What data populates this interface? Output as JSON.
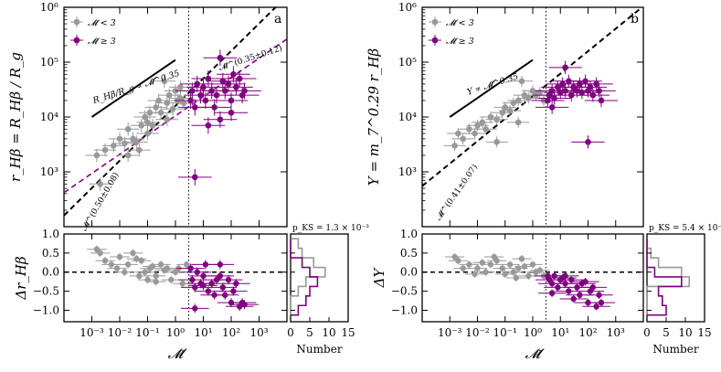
{
  "colors": {
    "low": "#999999",
    "high": "#800080",
    "dash_high": "#800080"
  },
  "chart_data": [
    {
      "type": "scatter",
      "panel": "a",
      "ylabel": "r_Hβ = R_Hβ / R_g",
      "xlabel": "𝓜̇",
      "xscale": "log",
      "yscale": "log",
      "xlim": [
        0.0001,
        10000
      ],
      "ylim": [
        100,
        1000000
      ],
      "xtick_labels": [
        "10⁻³",
        "10⁻²",
        "10⁻¹",
        "10⁰",
        "10¹",
        "10²",
        "10³"
      ],
      "ytick_labels": [
        "10³",
        "10⁴",
        "10⁵",
        "10⁶"
      ],
      "vline_x": 3,
      "legend": {
        "position": "top-left",
        "entries": [
          {
            "label": "𝓜̇ < 3",
            "color": "#999999"
          },
          {
            "label": "𝓜̇ ≥ 3",
            "color": "#800080"
          }
        ]
      },
      "annotations": {
        "panel_letter": "a",
        "scaling_label": "R_Hβ/R_g ∝ 𝓜̇^0.35",
        "fit_low_label": "𝓜̇^(0.50±0.08)",
        "fit_high_label": "𝓜̇^(0.35±0.12)"
      },
      "fits": {
        "low": {
          "slope": 0.5,
          "y_at_1": 16000
        },
        "high": {
          "slope": 0.35,
          "y_at_1": 10500
        },
        "reference": {
          "slope": 0.35,
          "from": [
            0.001,
            10000
          ],
          "to": [
            1,
            110000
          ]
        }
      },
      "series": [
        {
          "name": "𝓜̇ < 3",
          "x": [
            0.0015,
            0.003,
            0.006,
            0.01,
            0.015,
            0.02,
            0.03,
            0.04,
            0.05,
            0.06,
            0.08,
            0.1,
            0.12,
            0.15,
            0.2,
            0.25,
            0.3,
            0.4,
            0.5,
            0.6,
            0.8,
            1.0,
            1.2,
            1.5,
            2.0,
            0.002,
            0.02,
            0.1,
            0.5,
            1.5
          ],
          "y": [
            2000,
            2500,
            3000,
            4000,
            3300,
            6000,
            4000,
            3500,
            2500,
            7000,
            10000,
            8000,
            12000,
            7000,
            15000,
            20000,
            12000,
            45000,
            18000,
            25000,
            14000,
            30000,
            20000,
            35000,
            18000,
            600,
            2000,
            5000,
            9000,
            22000
          ],
          "xerr": 0.4,
          "yerr": 0.12
        },
        {
          "name": "𝓜̇ ≥ 3",
          "x": [
            3.5,
            4,
            5,
            6,
            8,
            10,
            12,
            15,
            20,
            25,
            30,
            40,
            50,
            60,
            80,
            100,
            120,
            150,
            200,
            250,
            300,
            5,
            15,
            40,
            100
          ],
          "y": [
            20000,
            30000,
            15000,
            40000,
            25000,
            35000,
            20000,
            50000,
            30000,
            15000,
            25000,
            120000,
            45000,
            30000,
            40000,
            20000,
            60000,
            35000,
            50000,
            25000,
            30000,
            800,
            7000,
            9000,
            12000
          ],
          "xerr": 0.6,
          "yerr": 0.15
        }
      ]
    },
    {
      "type": "scatter",
      "panel": "b",
      "ylabel": "Y = m_7^0.29 r_Hβ",
      "xlabel": "𝓜̇",
      "xscale": "log",
      "yscale": "log",
      "xlim": [
        0.0001,
        10000
      ],
      "ylim": [
        100,
        1000000
      ],
      "xtick_labels": [
        "10⁻³",
        "10⁻²",
        "10⁻¹",
        "10⁰",
        "10¹",
        "10²",
        "10³"
      ],
      "ytick_labels": [
        "10³",
        "10⁴",
        "10⁵",
        "10⁶"
      ],
      "vline_x": 3,
      "legend": {
        "position": "top-left",
        "entries": [
          {
            "label": "𝓜̇ < 3",
            "color": "#999999"
          },
          {
            "label": "𝓜̇ ≥ 3",
            "color": "#800080"
          }
        ]
      },
      "annotations": {
        "panel_letter": "b",
        "scaling_label": "Y ∝ 𝓜̇^0.35",
        "fit_low_label": "𝓜̇^(0.41±0.07)"
      },
      "fits": {
        "low": {
          "slope": 0.41,
          "y_at_1": 24000
        },
        "reference": {
          "slope": 0.35,
          "from": [
            0.001,
            10000
          ],
          "to": [
            1,
            110000
          ]
        }
      },
      "series": [
        {
          "name": "𝓜̇ < 3",
          "x": [
            0.0015,
            0.002,
            0.003,
            0.005,
            0.008,
            0.01,
            0.015,
            0.02,
            0.03,
            0.05,
            0.08,
            0.1,
            0.15,
            0.2,
            0.3,
            0.4,
            0.5,
            0.7,
            1.0,
            1.3,
            1.8,
            2.5,
            0.05,
            0.3
          ],
          "y": [
            3000,
            5000,
            4000,
            6000,
            5000,
            7000,
            8000,
            6000,
            10000,
            9000,
            12000,
            15000,
            13000,
            18000,
            20000,
            45000,
            25000,
            22000,
            30000,
            25000,
            28000,
            20000,
            3500,
            8000
          ],
          "xerr": 0.4,
          "yerr": 0.1
        },
        {
          "name": "𝓜̇ ≥ 3",
          "x": [
            3.5,
            4,
            5,
            6,
            8,
            10,
            12,
            15,
            20,
            25,
            30,
            40,
            50,
            60,
            80,
            100,
            120,
            150,
            200,
            250,
            300,
            5,
            15,
            100
          ],
          "y": [
            20000,
            25000,
            30000,
            22000,
            35000,
            28000,
            40000,
            30000,
            45000,
            25000,
            35000,
            30000,
            40000,
            28000,
            45000,
            30000,
            35000,
            25000,
            40000,
            30000,
            20000,
            15000,
            80000,
            3500
          ],
          "xerr": 0.6,
          "yerr": 0.12
        }
      ]
    },
    {
      "type": "scatter",
      "panel": "a-residual",
      "ylabel": "Δr_Hβ",
      "xlabel": "𝓜̇",
      "xscale": "log",
      "xlim": [
        0.0001,
        10000
      ],
      "ylim": [
        -1.3,
        1.0
      ],
      "ytick_labels": [
        "1.0",
        "0.5",
        "0.0",
        "−0.5",
        "−1.0"
      ],
      "xtick_labels": [
        "10⁻³",
        "10⁻²",
        "10⁻¹",
        "10⁰",
        "10¹",
        "10²",
        "10³"
      ],
      "series": [
        {
          "name": "𝓜̇ < 3",
          "x": [
            0.0015,
            0.002,
            0.003,
            0.005,
            0.008,
            0.01,
            0.015,
            0.02,
            0.03,
            0.05,
            0.06,
            0.08,
            0.1,
            0.12,
            0.15,
            0.2,
            0.3,
            0.4,
            0.5,
            0.7,
            1.0,
            1.3,
            1.8,
            2.5,
            0.04,
            0.2
          ],
          "y": [
            0.6,
            0.5,
            0.3,
            0.2,
            0.1,
            0.4,
            0.0,
            0.2,
            0.5,
            -0.1,
            0.3,
            0.0,
            -0.2,
            0.1,
            0.15,
            -0.1,
            0.2,
            0.05,
            0.1,
            -0.2,
            0.0,
            0.1,
            -0.3,
            0.2,
            0.35,
            -0.25
          ],
          "xerr": 0.35,
          "yerr": 0.1
        },
        {
          "name": "𝓜̇ ≥ 3",
          "x": [
            3.5,
            4,
            5,
            6,
            8,
            10,
            12,
            15,
            20,
            25,
            30,
            40,
            50,
            60,
            80,
            100,
            120,
            150,
            200,
            250,
            300,
            5,
            10,
            40
          ],
          "y": [
            0.1,
            -0.2,
            -0.4,
            0.0,
            -0.3,
            -0.1,
            0.2,
            -0.5,
            -0.3,
            -0.6,
            -0.2,
            0.2,
            -0.4,
            -0.6,
            -0.2,
            -0.8,
            -0.5,
            -0.3,
            -0.9,
            -0.8,
            -0.85,
            -0.95,
            -0.35,
            -0.1
          ],
          "xerr": 0.5,
          "yerr": 0.12
        }
      ]
    },
    {
      "type": "scatter",
      "panel": "b-residual",
      "ylabel": "ΔY",
      "xlabel": "𝓜̇",
      "xscale": "log",
      "xlim": [
        0.0001,
        10000
      ],
      "ylim": [
        -1.3,
        1.0
      ],
      "ytick_labels": [
        "1.0",
        "0.5",
        "0.0",
        "−0.5",
        "−1.0"
      ],
      "xtick_labels": [
        "10⁻³",
        "10⁻²",
        "10⁻¹",
        "10⁰",
        "10¹",
        "10²",
        "10³"
      ],
      "series": [
        {
          "name": "𝓜̇ < 3",
          "x": [
            0.0015,
            0.002,
            0.003,
            0.005,
            0.008,
            0.01,
            0.015,
            0.02,
            0.03,
            0.05,
            0.08,
            0.1,
            0.15,
            0.2,
            0.3,
            0.4,
            0.5,
            0.7,
            1.0,
            1.3,
            1.8,
            2.5,
            0.04,
            0.25
          ],
          "y": [
            0.4,
            0.3,
            0.1,
            0.2,
            -0.05,
            0.1,
            0.25,
            0.0,
            0.2,
            0.3,
            0.1,
            -0.05,
            0.2,
            0.0,
            0.1,
            0.35,
            0.15,
            -0.1,
            0.2,
            0.0,
            0.05,
            -0.1,
            0.4,
            -0.15
          ],
          "xerr": 0.35,
          "yerr": 0.1
        },
        {
          "name": "𝓜̇ ≥ 3",
          "x": [
            3.5,
            4,
            5,
            6,
            8,
            10,
            12,
            15,
            20,
            25,
            30,
            40,
            50,
            60,
            80,
            100,
            120,
            150,
            200,
            250,
            300,
            5,
            15
          ],
          "y": [
            -0.1,
            -0.2,
            -0.3,
            -0.1,
            -0.4,
            -0.2,
            -0.15,
            -0.3,
            -0.5,
            -0.2,
            -0.7,
            -0.4,
            -0.6,
            -0.3,
            -0.25,
            -0.8,
            -0.5,
            -0.4,
            -0.9,
            -0.6,
            -0.8,
            -0.55,
            -0.1
          ],
          "xerr": 0.5,
          "yerr": 0.1
        }
      ]
    },
    {
      "type": "bar",
      "panel": "a-hist",
      "orientation": "horizontal",
      "title": "p_KS = 1.3 × 10⁻³",
      "xlabel": "Number",
      "xlim": [
        0,
        15
      ],
      "ylim": [
        -1.3,
        1.0
      ],
      "xtick_labels": [
        "0",
        "5",
        "10",
        "15"
      ],
      "bins": [
        0.75,
        0.5,
        0.25,
        0.0,
        -0.25,
        -0.5,
        -0.75,
        -1.0
      ],
      "series": [
        {
          "name": "𝓜̇ < 3",
          "values": [
            2,
            3,
            6,
            9,
            4,
            2,
            0,
            0
          ]
        },
        {
          "name": "𝓜̇ ≥ 3",
          "values": [
            0,
            0,
            3,
            5,
            7,
            5,
            4,
            2
          ]
        }
      ]
    },
    {
      "type": "bar",
      "panel": "b-hist",
      "orientation": "horizontal",
      "title": "p_KS = 5.4 × 10⁻⁵",
      "xlabel": "Number",
      "xlim": [
        0,
        15
      ],
      "ylim": [
        -1.3,
        1.0
      ],
      "xtick_labels": [
        "0",
        "5",
        "10",
        "15"
      ],
      "bins": [
        0.75,
        0.5,
        0.25,
        0.0,
        -0.25,
        -0.5,
        -0.75,
        -1.0
      ],
      "series": [
        {
          "name": "𝓜̇ < 3",
          "values": [
            0,
            1,
            3,
            9,
            11,
            0,
            0,
            0
          ]
        },
        {
          "name": "𝓜̇ ≥ 3",
          "values": [
            0,
            0,
            0,
            2,
            9,
            3,
            4,
            5
          ]
        }
      ]
    }
  ]
}
